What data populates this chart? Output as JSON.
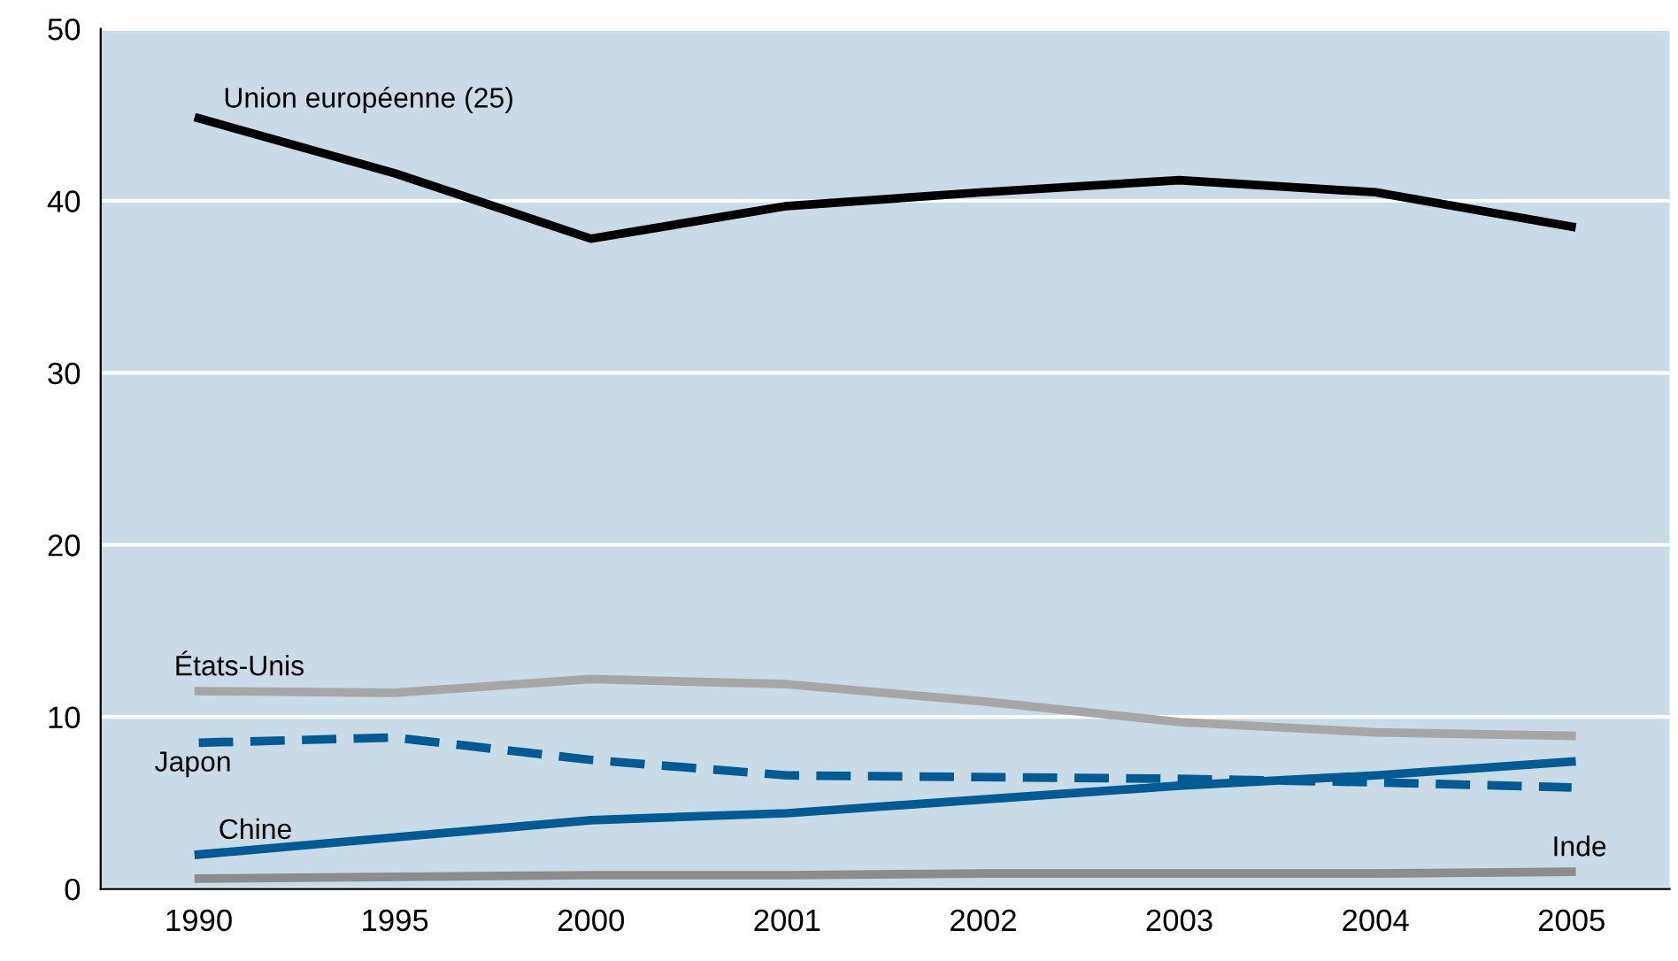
{
  "chart_data": {
    "type": "line",
    "categories": [
      "1990",
      "1995",
      "2000",
      "2001",
      "2002",
      "2003",
      "2004",
      "2005"
    ],
    "ylim": [
      0,
      50
    ],
    "yticks": [
      0,
      10,
      20,
      30,
      40,
      50
    ],
    "grid": "y",
    "legend": false,
    "marker": "none",
    "series": [
      {
        "name": "Union européenne (25)",
        "color": "#000000",
        "line_style": "solid",
        "values": [
          44.8,
          41.6,
          37.8,
          39.7,
          40.5,
          41.2,
          40.5,
          38.5
        ]
      },
      {
        "name": "États-Unis",
        "color": "#a6a6a6",
        "line_style": "solid",
        "values": [
          11.5,
          11.4,
          12.2,
          11.9,
          10.9,
          9.7,
          9.1,
          8.9
        ]
      },
      {
        "name": "Japon",
        "color": "#005a94",
        "line_style": "dashed",
        "values": [
          8.5,
          8.8,
          7.5,
          6.6,
          6.5,
          6.4,
          6.2,
          5.9
        ]
      },
      {
        "name": "Chine",
        "color": "#005a94",
        "line_style": "solid",
        "values": [
          2.0,
          3.0,
          4.0,
          4.4,
          5.2,
          6.0,
          6.6,
          7.4
        ]
      },
      {
        "name": "Inde",
        "color": "#8c8c8c",
        "line_style": "solid",
        "values": [
          0.6,
          0.7,
          0.8,
          0.8,
          0.9,
          0.9,
          0.9,
          1.0
        ]
      }
    ]
  }
}
